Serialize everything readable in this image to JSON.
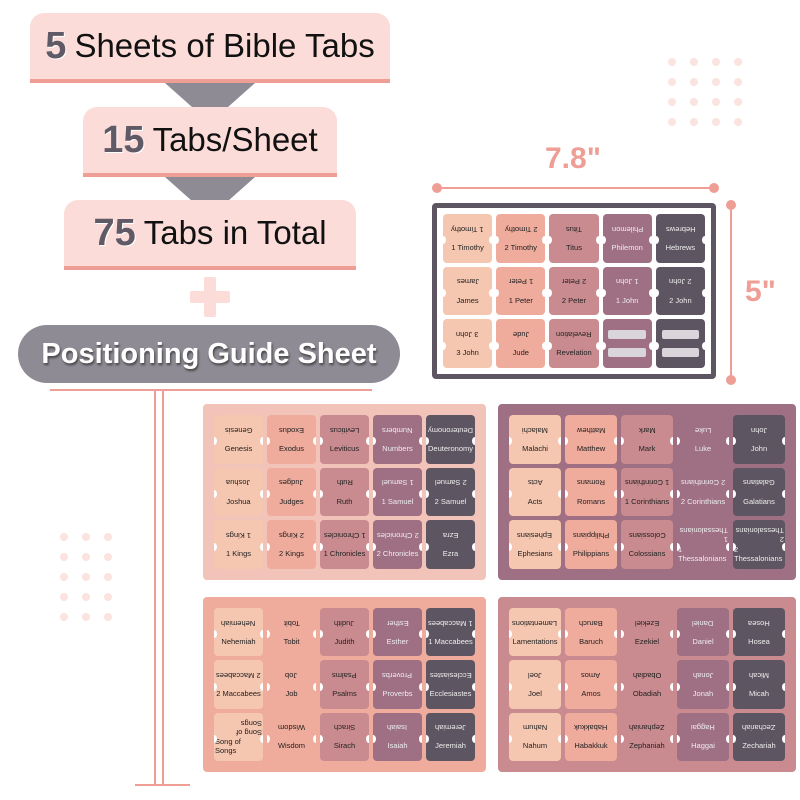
{
  "headline": [
    {
      "num": "5",
      "text": "Sheets of Bible Tabs"
    },
    {
      "num": "15",
      "text": "Tabs/Sheet"
    },
    {
      "num": "75",
      "text": "Tabs in Total"
    }
  ],
  "guide_label": "Positioning Guide Sheet",
  "dimensions": {
    "width": "7.8\"",
    "height": "5\""
  },
  "colors": {
    "col1": "#f5c6b0",
    "col2": "#efab9c",
    "col3": "#c98b8f",
    "col4": "#9f6f83",
    "col5": "#5d5561",
    "box": "#fbdcd9",
    "accent": "#ee9e94",
    "grey": "#8f8b95"
  },
  "sheets": [
    {
      "id": "top",
      "border": "#5d5561",
      "rows": [
        [
          "1 Timothy",
          "2 Timothy",
          "Titus",
          "Philemon",
          "Hebrews"
        ],
        [
          "James",
          "1 Peter",
          "2 Peter",
          "1 John",
          "2 John"
        ],
        [
          "3 John",
          "Jude",
          "Revelation",
          "",
          ""
        ]
      ]
    },
    {
      "id": "sheet-1",
      "border": "#f2c3b8",
      "rows": [
        [
          "Genesis",
          "Exodus",
          "Leviticus",
          "Numbers",
          "Deuteronomy"
        ],
        [
          "Joshua",
          "Judges",
          "Ruth",
          "1 Samuel",
          "2 Samuel"
        ],
        [
          "1 Kings",
          "2 Kings",
          "1 Chronicles",
          "2 Chronicles",
          "Ezra"
        ]
      ]
    },
    {
      "id": "sheet-2",
      "border": "#9f6f83",
      "rows": [
        [
          "Malachi",
          "Matthew",
          "Mark",
          "Luke",
          "John"
        ],
        [
          "Acts",
          "Romans",
          "1 Corinthians",
          "2 Corinthians",
          "Galatians"
        ],
        [
          "Ephesians",
          "Philippians",
          "Colossians",
          "1 Thessalonians",
          "2 Thessalonians"
        ]
      ]
    },
    {
      "id": "sheet-3",
      "border": "#efab9c",
      "rows": [
        [
          "Nehemiah",
          "Tobit",
          "Judith",
          "Esther",
          "1 Maccabees"
        ],
        [
          "2 Maccabees",
          "Job",
          "Psalms",
          "Proverbs",
          "Ecclesiastes"
        ],
        [
          "Song of Songs",
          "Wisdom",
          "Sirach",
          "Isaiah",
          "Jeremiah"
        ]
      ]
    },
    {
      "id": "sheet-4",
      "border": "#c98b8f",
      "rows": [
        [
          "Lamentations",
          "Baruch",
          "Ezekiel",
          "Daniel",
          "Hosea"
        ],
        [
          "Joel",
          "Amos",
          "Obadiah",
          "Jonah",
          "Micah"
        ],
        [
          "Nahum",
          "Habakkuk",
          "Zephaniah",
          "Haggai",
          "Zechariah"
        ]
      ]
    }
  ]
}
